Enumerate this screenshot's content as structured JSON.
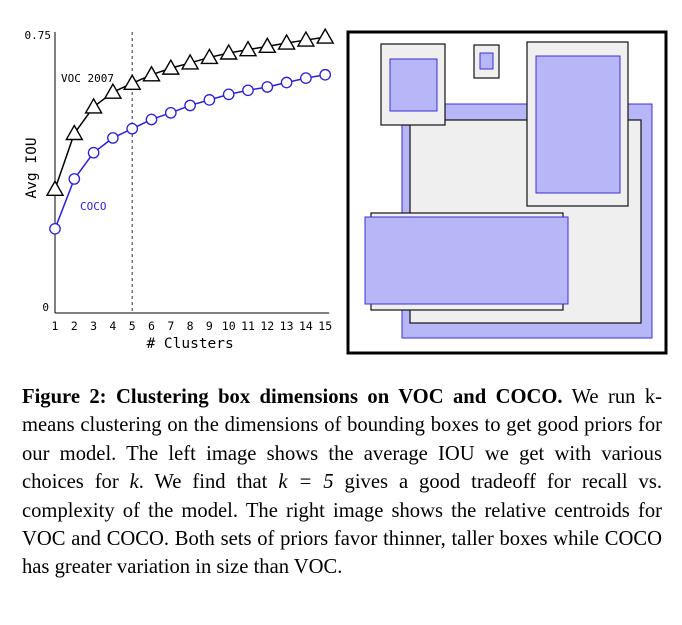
{
  "chart_data": {
    "type": "line",
    "title": "",
    "xlabel": "# Clusters",
    "ylabel": "Avg IOU",
    "x": [
      1,
      2,
      3,
      4,
      5,
      6,
      7,
      8,
      9,
      10,
      11,
      12,
      13,
      14,
      15
    ],
    "xlim": [
      1,
      15
    ],
    "ylim": [
      0,
      0.75
    ],
    "yticks": [
      "0",
      "0.75"
    ],
    "grid": false,
    "vline": {
      "x": 5,
      "style": "dashed"
    },
    "series": [
      {
        "name": "VOC 2007",
        "marker": "triangle",
        "color": "#000000",
        "values": [
          0.335,
          0.486,
          0.558,
          0.598,
          0.622,
          0.645,
          0.663,
          0.677,
          0.692,
          0.704,
          0.713,
          0.722,
          0.731,
          0.739,
          0.747
        ]
      },
      {
        "name": "COCO",
        "marker": "circle",
        "color": "#2b1fd6",
        "values": [
          0.228,
          0.363,
          0.434,
          0.474,
          0.499,
          0.524,
          0.542,
          0.562,
          0.577,
          0.592,
          0.603,
          0.612,
          0.624,
          0.636,
          0.645
        ]
      }
    ]
  },
  "centroids": {
    "colors": {
      "voc_fill": "#efefef",
      "voc_stroke": "#111111",
      "coco_fill": "#b7b7f7",
      "coco_stroke": "#3d2fd8",
      "border": "#000000"
    }
  },
  "caption": {
    "label": "Figure 2:",
    "heading": "Clustering box dimensions on VOC and COCO.",
    "body_1": " We run k-means clustering on the dimensions of bounding boxes to get good priors for our model. The left image shows the average IOU we get with various choices for ",
    "k1": "k",
    "body_2": ". We find that ",
    "k_eq": "k = 5",
    "body_3": " gives a good tradeoff for recall vs.  complexity of the model. The right image shows the relative centroids for VOC and COCO. Both sets of priors favor thinner, taller boxes while COCO has greater variation in size than VOC."
  }
}
